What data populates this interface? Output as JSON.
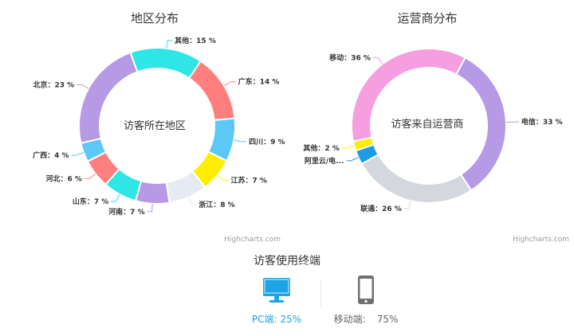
{
  "chart_data": [
    {
      "type": "pie",
      "title": "地区分布",
      "center_label": "访客所在地区",
      "credit": "Highcharts.com",
      "slices": [
        {
          "name": "其他",
          "value": 15,
          "label": "其他：15 %",
          "color": "#2ee6e6"
        },
        {
          "name": "广东",
          "value": 14,
          "label": "广东：14 %",
          "color": "#ff7f7f"
        },
        {
          "name": "四川",
          "value": 9,
          "label": "四川：9 %",
          "color": "#5cc8f5"
        },
        {
          "name": "江苏",
          "value": 7,
          "label": "江苏：7 %",
          "color": "#ffee00"
        },
        {
          "name": "浙江",
          "value": 8,
          "label": "浙江：8 %",
          "color": "#e6eaf2"
        },
        {
          "name": "河南",
          "value": 7,
          "label": "河南：7 %",
          "color": "#b79ae6"
        },
        {
          "name": "山东",
          "value": 7,
          "label": "山东：7 %",
          "color": "#2ee6e6"
        },
        {
          "name": "河北",
          "value": 6,
          "label": "河北：6 %",
          "color": "#ff7f7f"
        },
        {
          "name": "广西",
          "value": 4,
          "label": "广西：4 %",
          "color": "#5cc8f5"
        },
        {
          "name": "北京",
          "value": 23,
          "label": "北京：23 %",
          "color": "#b79ae6"
        }
      ]
    },
    {
      "type": "pie",
      "title": "运营商分布",
      "center_label": "访客来自运营商",
      "credit": "Highcharts.com",
      "slices": [
        {
          "name": "电信",
          "value": 33,
          "label": "电信：33 %",
          "color": "#b79ae6"
        },
        {
          "name": "联通",
          "value": 26,
          "label": "联通：26 %",
          "color": "#d4d7de"
        },
        {
          "name": "阿里云/电...",
          "value": 3,
          "label": "阿里云/电...",
          "color": "#1e9ae6"
        },
        {
          "name": "其他",
          "value": 2,
          "label": "其他：2 %",
          "color": "#ffee00"
        },
        {
          "name": "移动",
          "value": 36,
          "label": "移动：36 %",
          "color": "#f59ee0"
        }
      ]
    }
  ],
  "devices": {
    "title": "访客使用终端",
    "items": [
      {
        "name": "PC端:",
        "value": "25%",
        "icon": "monitor-icon",
        "color": "#1ea3e6"
      },
      {
        "name": "移动端:",
        "value": "75%",
        "icon": "phone-icon",
        "color": "#666666"
      }
    ]
  }
}
